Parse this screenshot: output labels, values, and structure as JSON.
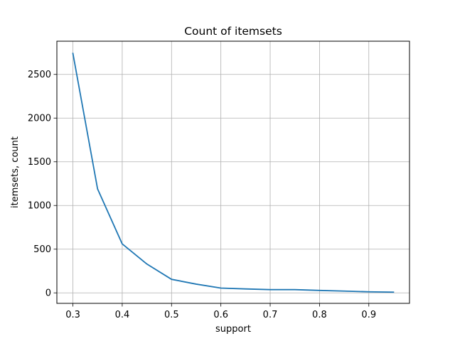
{
  "chart_data": {
    "type": "line",
    "title": "Count of itemsets",
    "xlabel": "support",
    "ylabel": "itemsets, count",
    "x": [
      0.3,
      0.35,
      0.4,
      0.45,
      0.5,
      0.55,
      0.6,
      0.65,
      0.7,
      0.75,
      0.8,
      0.85,
      0.9,
      0.95
    ],
    "series": [
      {
        "values": [
          2740,
          1190,
          560,
          330,
          155,
          100,
          55,
          45,
          37,
          37,
          28,
          20,
          12,
          8
        ]
      }
    ],
    "xlim": [
      0.2675,
      0.9825
    ],
    "ylim": [
      -120,
      2880
    ],
    "xticks": [
      0.3,
      0.4,
      0.5,
      0.6,
      0.7,
      0.8,
      0.9
    ],
    "xtick_labels": [
      "0.3",
      "0.4",
      "0.5",
      "0.6",
      "0.7",
      "0.8",
      "0.9"
    ],
    "yticks": [
      0,
      500,
      1000,
      1500,
      2000,
      2500
    ],
    "ytick_labels": [
      "0",
      "500",
      "1000",
      "1500",
      "2000",
      "2500"
    ],
    "grid": true,
    "line_color": "#1f77b4",
    "grid_color": "#b0b0b0"
  }
}
